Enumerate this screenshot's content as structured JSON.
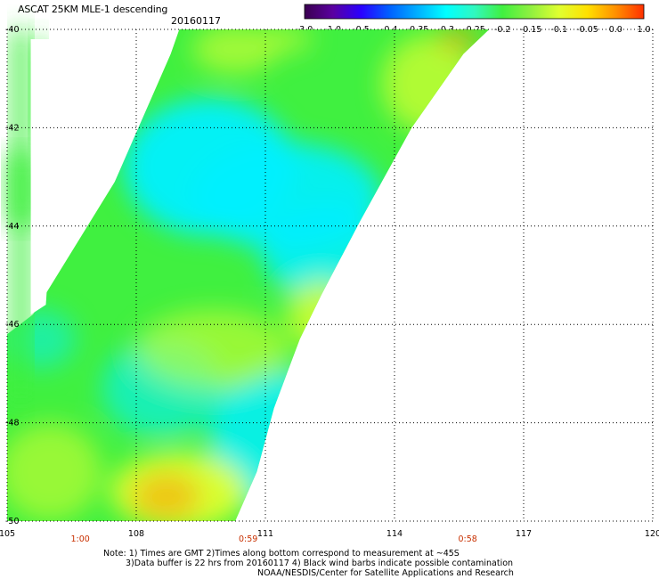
{
  "header": {
    "title": "ASCAT 25KM MLE-1 descending",
    "date": "20160117"
  },
  "colorbar": {
    "tick_labels": [
      "-3.0",
      "-1.0",
      "-0.5",
      "-0.4",
      "-0.35",
      "-0.3",
      "-0.25",
      "-0.2",
      "-0.15",
      "-0.1",
      "-0.05",
      "0.0",
      "1.0"
    ],
    "colors": [
      "#3a0050",
      "#5a00a0",
      "#2a00ff",
      "#0060ff",
      "#00b0ff",
      "#00ffff",
      "#30f8c0",
      "#40f040",
      "#90f040",
      "#e0ff30",
      "#ffe000",
      "#ff9000",
      "#ff3000"
    ]
  },
  "chart_data": {
    "type": "heatmap",
    "title": "ASCAT 25KM MLE-1 descending",
    "xlim": [
      105,
      120
    ],
    "ylim": [
      -50,
      -40
    ],
    "x_ticks": [
      "105",
      "108",
      "111",
      "114",
      "117",
      "120"
    ],
    "y_ticks": [
      "-40",
      "-42",
      "-44",
      "-46",
      "-48",
      "-50"
    ],
    "grid": true,
    "swath_time_labels": [
      {
        "lon": 106.7,
        "text": "1:00"
      },
      {
        "lon": 110.6,
        "text": "0:59"
      },
      {
        "lon": 115.7,
        "text": "0:58"
      }
    ],
    "time_label_color": "#c83000",
    "regions": [
      {
        "name": "cyan band",
        "value": -0.27,
        "color": "#00f0ff"
      },
      {
        "name": "green field",
        "value": -0.18,
        "color": "#40f040"
      },
      {
        "name": "yellow patches",
        "value": -0.08,
        "color": "#e0ff30"
      },
      {
        "name": "orange patches",
        "value": 0.0,
        "color": "#ff9a00"
      }
    ]
  },
  "notes": {
    "line1": "Note: 1) Times are GMT 2)Times along bottom correspond to measurement at ~45S",
    "line2": "3)Data buffer is 22 hrs from 20160117 4) Black wind barbs indicate possible contamination",
    "line3": "NOAA/NESDIS/Center for Satellite Applications and Research"
  }
}
